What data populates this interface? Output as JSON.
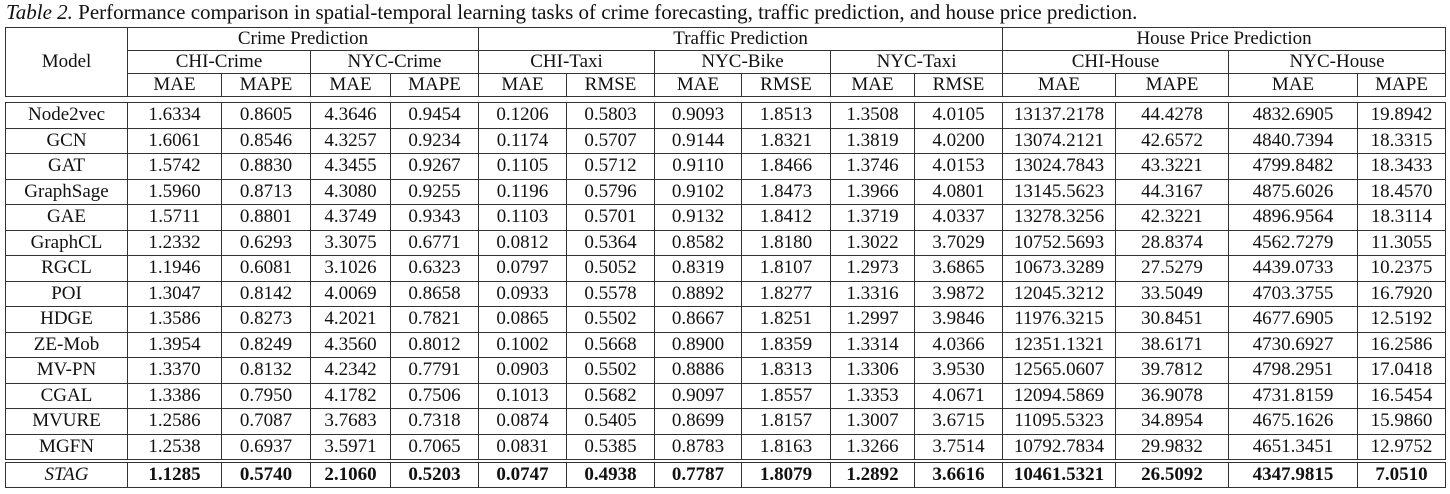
{
  "caption": {
    "label": "Table 2.",
    "text": " Performance comparison in spatial-temporal learning tasks of crime forecasting, traffic prediction, and house price prediction."
  },
  "header": {
    "model": "Model",
    "tasks": [
      {
        "name": "Crime Prediction",
        "span": 4
      },
      {
        "name": "Traffic Prediction",
        "span": 6
      },
      {
        "name": "House Price Prediction",
        "span": 4
      }
    ],
    "datasets": [
      {
        "name": "CHI-Crime",
        "span": 2
      },
      {
        "name": "NYC-Crime",
        "span": 2
      },
      {
        "name": "CHI-Taxi",
        "span": 2
      },
      {
        "name": "NYC-Bike",
        "span": 2
      },
      {
        "name": "NYC-Taxi",
        "span": 2
      },
      {
        "name": "CHI-House",
        "span": 2
      },
      {
        "name": "NYC-House",
        "span": 2
      }
    ],
    "metrics": [
      "MAE",
      "MAPE",
      "MAE",
      "MAPE",
      "MAE",
      "RMSE",
      "MAE",
      "RMSE",
      "MAE",
      "RMSE",
      "MAE",
      "MAPE",
      "MAE",
      "MAPE"
    ]
  },
  "rows": [
    {
      "model": "Node2vec",
      "values": [
        "1.6334",
        "0.8605",
        "4.3646",
        "0.9454",
        "0.1206",
        "0.5803",
        "0.9093",
        "1.8513",
        "1.3508",
        "4.0105",
        "13137.2178",
        "44.4278",
        "4832.6905",
        "19.8942"
      ]
    },
    {
      "model": "GCN",
      "values": [
        "1.6061",
        "0.8546",
        "4.3257",
        "0.9234",
        "0.1174",
        "0.5707",
        "0.9144",
        "1.8321",
        "1.3819",
        "4.0200",
        "13074.2121",
        "42.6572",
        "4840.7394",
        "18.3315"
      ]
    },
    {
      "model": "GAT",
      "values": [
        "1.5742",
        "0.8830",
        "4.3455",
        "0.9267",
        "0.1105",
        "0.5712",
        "0.9110",
        "1.8466",
        "1.3746",
        "4.0153",
        "13024.7843",
        "43.3221",
        "4799.8482",
        "18.3433"
      ]
    },
    {
      "model": "GraphSage",
      "values": [
        "1.5960",
        "0.8713",
        "4.3080",
        "0.9255",
        "0.1196",
        "0.5796",
        "0.9102",
        "1.8473",
        "1.3966",
        "4.0801",
        "13145.5623",
        "44.3167",
        "4875.6026",
        "18.4570"
      ]
    },
    {
      "model": "GAE",
      "values": [
        "1.5711",
        "0.8801",
        "4.3749",
        "0.9343",
        "0.1103",
        "0.5701",
        "0.9132",
        "1.8412",
        "1.3719",
        "4.0337",
        "13278.3256",
        "42.3221",
        "4896.9564",
        "18.3114"
      ]
    },
    {
      "model": "GraphCL",
      "values": [
        "1.2332",
        "0.6293",
        "3.3075",
        "0.6771",
        "0.0812",
        "0.5364",
        "0.8582",
        "1.8180",
        "1.3022",
        "3.7029",
        "10752.5693",
        "28.8374",
        "4562.7279",
        "11.3055"
      ]
    },
    {
      "model": "RGCL",
      "values": [
        "1.1946",
        "0.6081",
        "3.1026",
        "0.6323",
        "0.0797",
        "0.5052",
        "0.8319",
        "1.8107",
        "1.2973",
        "3.6865",
        "10673.3289",
        "27.5279",
        "4439.0733",
        "10.2375"
      ]
    },
    {
      "model": "POI",
      "values": [
        "1.3047",
        "0.8142",
        "4.0069",
        "0.8658",
        "0.0933",
        "0.5578",
        "0.8892",
        "1.8277",
        "1.3316",
        "3.9872",
        "12045.3212",
        "33.5049",
        "4703.3755",
        "16.7920"
      ]
    },
    {
      "model": "HDGE",
      "values": [
        "1.3586",
        "0.8273",
        "4.2021",
        "0.7821",
        "0.0865",
        "0.5502",
        "0.8667",
        "1.8251",
        "1.2997",
        "3.9846",
        "11976.3215",
        "30.8451",
        "4677.6905",
        "12.5192"
      ]
    },
    {
      "model": "ZE-Mob",
      "values": [
        "1.3954",
        "0.8249",
        "4.3560",
        "0.8012",
        "0.1002",
        "0.5668",
        "0.8900",
        "1.8359",
        "1.3314",
        "4.0366",
        "12351.1321",
        "38.6171",
        "4730.6927",
        "16.2586"
      ]
    },
    {
      "model": "MV-PN",
      "values": [
        "1.3370",
        "0.8132",
        "4.2342",
        "0.7791",
        "0.0903",
        "0.5502",
        "0.8886",
        "1.8313",
        "1.3306",
        "3.9530",
        "12565.0607",
        "39.7812",
        "4798.2951",
        "17.0418"
      ]
    },
    {
      "model": "CGAL",
      "values": [
        "1.3386",
        "0.7950",
        "4.1782",
        "0.7506",
        "0.1013",
        "0.5682",
        "0.9097",
        "1.8557",
        "1.3353",
        "4.0671",
        "12094.5869",
        "36.9078",
        "4731.8159",
        "16.5454"
      ]
    },
    {
      "model": "MVURE",
      "values": [
        "1.2586",
        "0.7087",
        "3.7683",
        "0.7318",
        "0.0874",
        "0.5405",
        "0.8699",
        "1.8157",
        "1.3007",
        "3.6715",
        "11095.5323",
        "34.8954",
        "4675.1626",
        "15.9860"
      ]
    },
    {
      "model": "MGFN",
      "values": [
        "1.2538",
        "0.6937",
        "3.5971",
        "0.7065",
        "0.0831",
        "0.5385",
        "0.8783",
        "1.8163",
        "1.3266",
        "3.7514",
        "10792.7834",
        "29.9832",
        "4651.3451",
        "12.9752"
      ]
    }
  ],
  "proposed": {
    "model": "STAG",
    "values": [
      "1.1285",
      "0.5740",
      "2.1060",
      "0.5203",
      "0.0747",
      "0.4938",
      "0.7787",
      "1.8079",
      "1.2892",
      "3.6616",
      "10461.5321",
      "26.5092",
      "4347.9815",
      "7.0510"
    ]
  }
}
